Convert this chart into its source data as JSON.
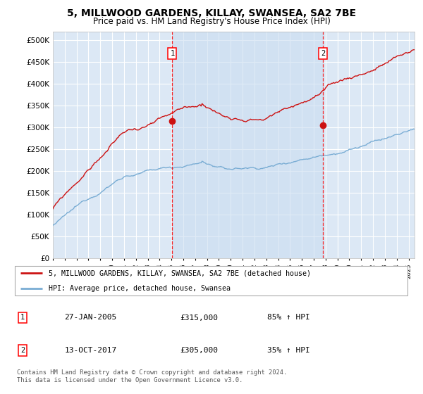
{
  "title": "5, MILLWOOD GARDENS, KILLAY, SWANSEA, SA2 7BE",
  "subtitle": "Price paid vs. HM Land Registry's House Price Index (HPI)",
  "bg_color": "#dce8f5",
  "grid_color": "#ffffff",
  "hpi_color": "#7aadd4",
  "price_color": "#cc1111",
  "marker_color": "#cc1111",
  "purchase1_date_num": 2005.07,
  "purchase1_price": 315000,
  "purchase2_date_num": 2017.79,
  "purchase2_price": 305000,
  "legend_line1": "5, MILLWOOD GARDENS, KILLAY, SWANSEA, SA2 7BE (detached house)",
  "legend_line2": "HPI: Average price, detached house, Swansea",
  "table_row1": [
    "1",
    "27-JAN-2005",
    "£315,000",
    "85% ↑ HPI"
  ],
  "table_row2": [
    "2",
    "13-OCT-2017",
    "£305,000",
    "35% ↑ HPI"
  ],
  "footnote": "Contains HM Land Registry data © Crown copyright and database right 2024.\nThis data is licensed under the Open Government Licence v3.0.",
  "xmin": 1995.0,
  "xmax": 2025.5,
  "ymin": 0,
  "ymax": 520000
}
